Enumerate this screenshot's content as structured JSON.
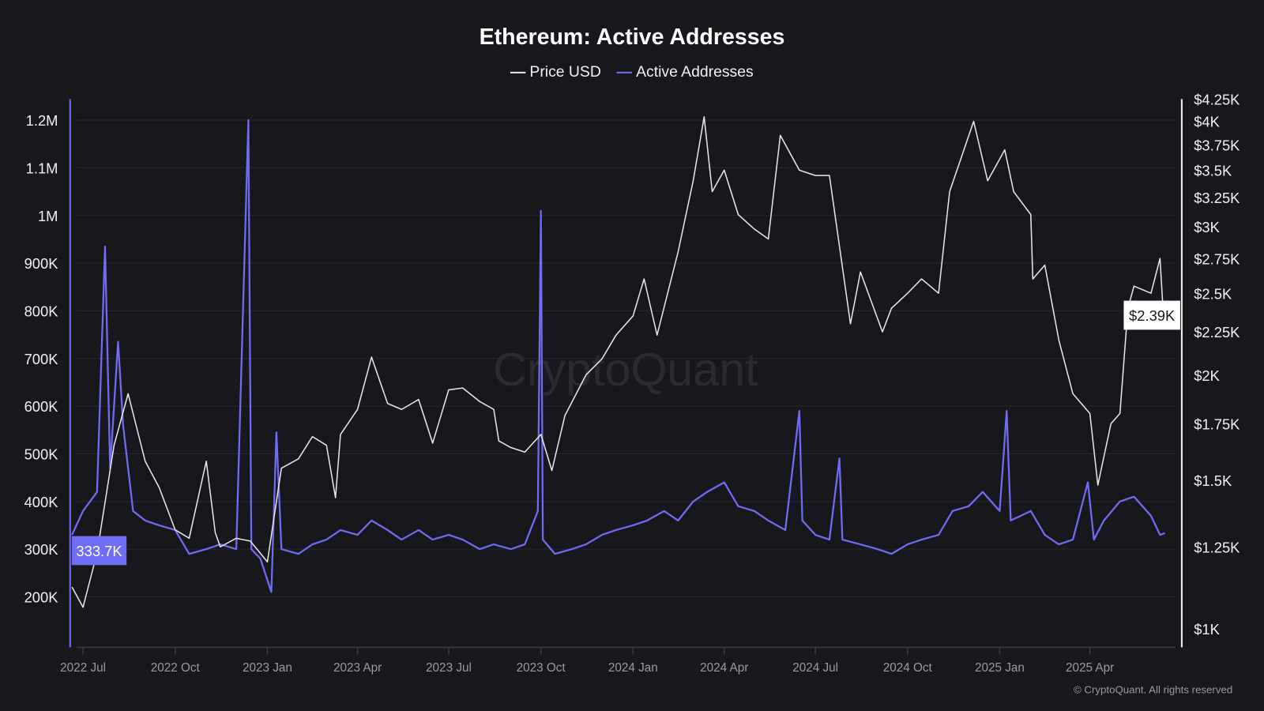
{
  "chart_data": {
    "type": "line",
    "title": "Ethereum: Active Addresses",
    "watermark": "CryptoQuant",
    "copyright": "© CryptoQuant. All rights reserved",
    "legend": {
      "placement": "top-center",
      "entries": [
        "Price USD",
        "Active Addresses"
      ]
    },
    "grid": true,
    "x_ticks": [
      {
        "label": "2022 Jul",
        "date": "2022-07-01"
      },
      {
        "label": "2022 Oct",
        "date": "2022-10-01"
      },
      {
        "label": "2023 Jan",
        "date": "2023-01-01"
      },
      {
        "label": "2023 Apr",
        "date": "2023-04-01"
      },
      {
        "label": "2023 Jul",
        "date": "2023-07-01"
      },
      {
        "label": "2023 Oct",
        "date": "2023-10-01"
      },
      {
        "label": "2024 Jan",
        "date": "2024-01-01"
      },
      {
        "label": "2024 Apr",
        "date": "2024-04-01"
      },
      {
        "label": "2024 Jul",
        "date": "2024-07-01"
      },
      {
        "label": "2024 Oct",
        "date": "2024-10-01"
      },
      {
        "label": "2025 Jan",
        "date": "2025-01-01"
      },
      {
        "label": "2025 Apr",
        "date": "2025-04-01"
      }
    ],
    "y_left": {
      "scale": "linear",
      "range": [
        94000,
        1244000
      ],
      "ticks": [
        {
          "label": "200K",
          "v": 200000
        },
        {
          "label": "300K",
          "v": 300000
        },
        {
          "label": "400K",
          "v": 400000
        },
        {
          "label": "500K",
          "v": 500000
        },
        {
          "label": "600K",
          "v": 600000
        },
        {
          "label": "700K",
          "v": 700000
        },
        {
          "label": "800K",
          "v": 800000
        },
        {
          "label": "900K",
          "v": 900000
        },
        {
          "label": "1M",
          "v": 1000000
        },
        {
          "label": "1.1M",
          "v": 1100000
        },
        {
          "label": "1.2M",
          "v": 1200000
        }
      ]
    },
    "y_right": {
      "scale": "log",
      "range": [
        950,
        4250
      ],
      "ticks": [
        {
          "label": "$1K",
          "v": 1000
        },
        {
          "label": "$1.25K",
          "v": 1250
        },
        {
          "label": "$1.5K",
          "v": 1500
        },
        {
          "label": "$1.75K",
          "v": 1750
        },
        {
          "label": "$2K",
          "v": 2000
        },
        {
          "label": "$2.25K",
          "v": 2250
        },
        {
          "label": "$2.5K",
          "v": 2500
        },
        {
          "label": "$2.75K",
          "v": 2750
        },
        {
          "label": "$3K",
          "v": 3000
        },
        {
          "label": "$3.25K",
          "v": 3250
        },
        {
          "label": "$3.5K",
          "v": 3500
        },
        {
          "label": "$3.75K",
          "v": 3750
        },
        {
          "label": "$4K",
          "v": 4000
        },
        {
          "label": "$4.25K",
          "v": 4250
        }
      ]
    },
    "current_labels": {
      "active_addresses": "333.7K",
      "price": "$2.39K"
    },
    "series": [
      {
        "name": "Price USD",
        "axis": "right",
        "color": "#e8e8e8",
        "points": [
          [
            "2022-06-20",
            1120
          ],
          [
            "2022-07-01",
            1060
          ],
          [
            "2022-07-15",
            1230
          ],
          [
            "2022-08-01",
            1650
          ],
          [
            "2022-08-15",
            1900
          ],
          [
            "2022-09-01",
            1580
          ],
          [
            "2022-09-15",
            1470
          ],
          [
            "2022-10-01",
            1310
          ],
          [
            "2022-10-15",
            1280
          ],
          [
            "2022-11-01",
            1580
          ],
          [
            "2022-11-10",
            1300
          ],
          [
            "2022-11-15",
            1250
          ],
          [
            "2022-12-01",
            1280
          ],
          [
            "2022-12-15",
            1270
          ],
          [
            "2023-01-01",
            1200
          ],
          [
            "2023-01-15",
            1550
          ],
          [
            "2023-02-01",
            1590
          ],
          [
            "2023-02-15",
            1690
          ],
          [
            "2023-03-01",
            1650
          ],
          [
            "2023-03-10",
            1430
          ],
          [
            "2023-03-15",
            1700
          ],
          [
            "2023-04-01",
            1820
          ],
          [
            "2023-04-15",
            2100
          ],
          [
            "2023-05-01",
            1850
          ],
          [
            "2023-05-15",
            1820
          ],
          [
            "2023-06-01",
            1870
          ],
          [
            "2023-06-15",
            1660
          ],
          [
            "2023-07-01",
            1920
          ],
          [
            "2023-07-15",
            1930
          ],
          [
            "2023-08-01",
            1860
          ],
          [
            "2023-08-15",
            1820
          ],
          [
            "2023-08-20",
            1670
          ],
          [
            "2023-09-01",
            1640
          ],
          [
            "2023-09-15",
            1620
          ],
          [
            "2023-10-01",
            1700
          ],
          [
            "2023-10-12",
            1540
          ],
          [
            "2023-10-25",
            1790
          ],
          [
            "2023-11-15",
            2000
          ],
          [
            "2023-12-01",
            2090
          ],
          [
            "2023-12-15",
            2230
          ],
          [
            "2024-01-01",
            2350
          ],
          [
            "2024-01-12",
            2600
          ],
          [
            "2024-01-25",
            2230
          ],
          [
            "2024-02-15",
            2800
          ],
          [
            "2024-03-01",
            3400
          ],
          [
            "2024-03-12",
            4050
          ],
          [
            "2024-03-20",
            3300
          ],
          [
            "2024-04-01",
            3500
          ],
          [
            "2024-04-15",
            3100
          ],
          [
            "2024-05-01",
            2980
          ],
          [
            "2024-05-15",
            2900
          ],
          [
            "2024-05-27",
            3850
          ],
          [
            "2024-06-15",
            3500
          ],
          [
            "2024-07-01",
            3450
          ],
          [
            "2024-07-15",
            3450
          ],
          [
            "2024-08-05",
            2300
          ],
          [
            "2024-08-15",
            2650
          ],
          [
            "2024-09-06",
            2250
          ],
          [
            "2024-09-15",
            2400
          ],
          [
            "2024-10-01",
            2500
          ],
          [
            "2024-10-15",
            2600
          ],
          [
            "2024-11-01",
            2500
          ],
          [
            "2024-11-12",
            3300
          ],
          [
            "2024-12-06",
            4000
          ],
          [
            "2024-12-20",
            3400
          ],
          [
            "2025-01-06",
            3700
          ],
          [
            "2025-01-15",
            3300
          ],
          [
            "2025-02-01",
            3100
          ],
          [
            "2025-02-03",
            2600
          ],
          [
            "2025-02-15",
            2700
          ],
          [
            "2025-03-01",
            2200
          ],
          [
            "2025-03-15",
            1900
          ],
          [
            "2025-04-01",
            1800
          ],
          [
            "2025-04-09",
            1480
          ],
          [
            "2025-04-22",
            1750
          ],
          [
            "2025-05-01",
            1800
          ],
          [
            "2025-05-09",
            2400
          ],
          [
            "2025-05-15",
            2550
          ],
          [
            "2025-06-01",
            2500
          ],
          [
            "2025-06-10",
            2750
          ],
          [
            "2025-06-13",
            2400
          ],
          [
            "2025-06-15",
            2390
          ]
        ]
      },
      {
        "name": "Active Addresses",
        "axis": "left",
        "color": "#6f6cf5",
        "points": [
          [
            "2022-06-20",
            330000
          ],
          [
            "2022-07-01",
            380000
          ],
          [
            "2022-07-15",
            420000
          ],
          [
            "2022-07-23",
            935000
          ],
          [
            "2022-07-28",
            470000
          ],
          [
            "2022-08-05",
            735000
          ],
          [
            "2022-08-10",
            560000
          ],
          [
            "2022-08-20",
            380000
          ],
          [
            "2022-09-01",
            360000
          ],
          [
            "2022-09-15",
            350000
          ],
          [
            "2022-10-01",
            340000
          ],
          [
            "2022-10-15",
            290000
          ],
          [
            "2022-11-01",
            300000
          ],
          [
            "2022-11-15",
            310000
          ],
          [
            "2022-12-01",
            300000
          ],
          [
            "2022-12-13",
            1200000
          ],
          [
            "2022-12-16",
            300000
          ],
          [
            "2022-12-25",
            280000
          ],
          [
            "2023-01-05",
            210000
          ],
          [
            "2023-01-10",
            545000
          ],
          [
            "2023-01-15",
            300000
          ],
          [
            "2023-02-01",
            290000
          ],
          [
            "2023-02-15",
            310000
          ],
          [
            "2023-03-01",
            320000
          ],
          [
            "2023-03-15",
            340000
          ],
          [
            "2023-04-01",
            330000
          ],
          [
            "2023-04-15",
            360000
          ],
          [
            "2023-05-01",
            340000
          ],
          [
            "2023-05-15",
            320000
          ],
          [
            "2023-06-01",
            340000
          ],
          [
            "2023-06-15",
            320000
          ],
          [
            "2023-07-01",
            330000
          ],
          [
            "2023-07-15",
            320000
          ],
          [
            "2023-08-01",
            300000
          ],
          [
            "2023-08-15",
            310000
          ],
          [
            "2023-09-01",
            300000
          ],
          [
            "2023-09-15",
            310000
          ],
          [
            "2023-09-28",
            380000
          ],
          [
            "2023-10-01",
            1010000
          ],
          [
            "2023-10-03",
            320000
          ],
          [
            "2023-10-15",
            290000
          ],
          [
            "2023-11-01",
            300000
          ],
          [
            "2023-11-15",
            310000
          ],
          [
            "2023-12-01",
            330000
          ],
          [
            "2023-12-15",
            340000
          ],
          [
            "2024-01-01",
            350000
          ],
          [
            "2024-01-15",
            360000
          ],
          [
            "2024-02-01",
            380000
          ],
          [
            "2024-02-15",
            360000
          ],
          [
            "2024-03-01",
            400000
          ],
          [
            "2024-03-15",
            420000
          ],
          [
            "2024-04-01",
            440000
          ],
          [
            "2024-04-15",
            390000
          ],
          [
            "2024-05-01",
            380000
          ],
          [
            "2024-05-15",
            360000
          ],
          [
            "2024-06-01",
            340000
          ],
          [
            "2024-06-15",
            590000
          ],
          [
            "2024-06-18",
            360000
          ],
          [
            "2024-07-01",
            330000
          ],
          [
            "2024-07-15",
            320000
          ],
          [
            "2024-07-25",
            490000
          ],
          [
            "2024-07-28",
            320000
          ],
          [
            "2024-08-15",
            310000
          ],
          [
            "2024-09-01",
            300000
          ],
          [
            "2024-09-15",
            290000
          ],
          [
            "2024-10-01",
            310000
          ],
          [
            "2024-10-15",
            320000
          ],
          [
            "2024-11-01",
            330000
          ],
          [
            "2024-11-15",
            380000
          ],
          [
            "2024-12-01",
            390000
          ],
          [
            "2024-12-15",
            420000
          ],
          [
            "2025-01-01",
            380000
          ],
          [
            "2025-01-08",
            590000
          ],
          [
            "2025-01-12",
            360000
          ],
          [
            "2025-02-01",
            380000
          ],
          [
            "2025-02-15",
            330000
          ],
          [
            "2025-03-01",
            310000
          ],
          [
            "2025-03-15",
            320000
          ],
          [
            "2025-03-30",
            440000
          ],
          [
            "2025-04-05",
            320000
          ],
          [
            "2025-04-15",
            360000
          ],
          [
            "2025-05-01",
            400000
          ],
          [
            "2025-05-15",
            410000
          ],
          [
            "2025-06-01",
            370000
          ],
          [
            "2025-06-10",
            330000
          ],
          [
            "2025-06-15",
            333700
          ]
        ]
      }
    ]
  }
}
